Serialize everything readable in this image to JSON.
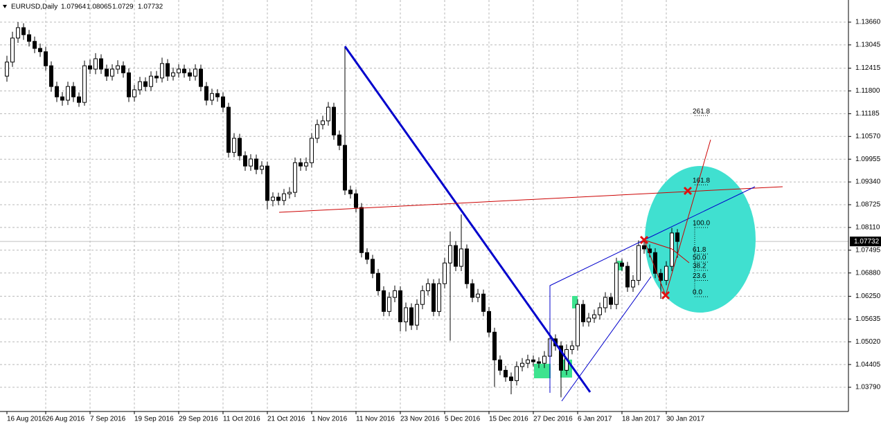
{
  "chart_data": {
    "type": "candlestick",
    "symbol": "EURUSD,Daily",
    "open": [
      1.122,
      1.1258,
      1.1323,
      1.1351,
      1.1332,
      1.1314,
      1.1295,
      1.1286,
      1.1248,
      1.1192,
      1.1164,
      1.1155,
      1.1192,
      1.1164,
      1.1149,
      1.1248,
      1.1239,
      1.1267,
      1.1239,
      1.122,
      1.1239,
      1.1248,
      1.1229,
      1.1164,
      1.1183,
      1.1205,
      1.1192,
      1.122,
      1.1215,
      1.1254,
      1.122,
      1.1229,
      1.1239,
      1.1229,
      1.122,
      1.1239,
      1.1192,
      1.1155,
      1.1173,
      1.1164,
      1.1136,
      1.1014,
      1.1052,
      1.1005,
      1.0977,
      1.0996,
      1.0968,
      1.0977,
      1.0884,
      1.0893,
      1.0884,
      1.0902,
      1.0906,
      1.0986,
      1.0977,
      1.0986,
      1.1052,
      1.1089,
      1.1099,
      1.1136,
      1.1061,
      1.1033,
      1.0912,
      1.0902,
      1.0865,
      1.0743,
      1.0725,
      1.0687,
      1.064,
      1.0584,
      1.0622,
      1.064,
      1.0556,
      1.0594,
      1.0547,
      1.0603,
      1.064,
      1.0659,
      1.0584,
      1.0659,
      1.0715,
      1.0762,
      1.0706,
      1.0753,
      1.0659,
      1.0622,
      1.0631,
      1.0584,
      1.0528,
      1.0453,
      1.0425,
      1.0407,
      1.0397,
      1.0435,
      1.0444,
      1.0453,
      1.0448,
      1.0444,
      1.0463,
      1.051,
      1.0491,
      1.0425,
      1.0481,
      1.0491,
      1.0603,
      1.0556,
      1.0566,
      1.0575,
      1.0594,
      1.0622,
      1.0603,
      1.0715,
      1.0706,
      1.065,
      1.0668,
      1.0762,
      1.0753,
      1.0743,
      1.0687,
      1.0668,
      1.0706,
      1.07964
    ],
    "high": [
      1.1275,
      1.134,
      1.1366,
      1.1363,
      1.1345,
      1.1327,
      1.1308,
      1.1299,
      1.126,
      1.1205,
      1.1177,
      1.1205,
      1.1204,
      1.1176,
      1.1262,
      1.1265,
      1.1282,
      1.1279,
      1.1251,
      1.1252,
      1.1263,
      1.126,
      1.1241,
      1.1196,
      1.1218,
      1.1217,
      1.1233,
      1.1234,
      1.127,
      1.1266,
      1.1243,
      1.1252,
      1.1251,
      1.1241,
      1.1252,
      1.1251,
      1.1204,
      1.1186,
      1.1185,
      1.1176,
      1.1148,
      1.1066,
      1.1064,
      1.1017,
      1.1009,
      1.1008,
      1.099,
      1.0989,
      1.0906,
      1.0905,
      1.0915,
      1.092,
      1.1,
      1.0998,
      1.1,
      1.1066,
      1.1103,
      1.1113,
      1.115,
      1.1148,
      1.1073,
      1.1299,
      1.0924,
      1.0914,
      1.0877,
      1.0755,
      1.0737,
      1.0699,
      1.0652,
      1.0636,
      1.0654,
      1.0652,
      1.0608,
      1.0606,
      1.0617,
      1.0654,
      1.0673,
      1.0671,
      1.0673,
      1.0729,
      1.08,
      1.0774,
      1.0846,
      1.0765,
      1.0671,
      1.0645,
      1.0643,
      1.0596,
      1.054,
      1.0465,
      1.0437,
      1.0419,
      1.0449,
      1.0458,
      1.0467,
      1.0465,
      1.046,
      1.0477,
      1.0524,
      1.0522,
      1.0503,
      1.0495,
      1.0505,
      1.0617,
      1.0615,
      1.058,
      1.0589,
      1.0608,
      1.0636,
      1.0634,
      1.0729,
      1.0727,
      1.0718,
      1.0682,
      1.0776,
      1.0774,
      1.0765,
      1.0755,
      1.0699,
      1.072,
      1.081,
      1.08065
    ],
    "low": [
      1.1205,
      1.1245,
      1.131,
      1.1318,
      1.13,
      1.1282,
      1.1272,
      1.1235,
      1.1178,
      1.115,
      1.114,
      1.1142,
      1.115,
      1.1137,
      1.114,
      1.1226,
      1.1225,
      1.1226,
      1.1207,
      1.1208,
      1.1226,
      1.1216,
      1.115,
      1.1151,
      1.117,
      1.1179,
      1.118,
      1.1202,
      1.1203,
      1.1207,
      1.1208,
      1.1216,
      1.1216,
      1.1207,
      1.1208,
      1.1179,
      1.1141,
      1.1142,
      1.1151,
      1.1123,
      1.1,
      1.1001,
      1.0992,
      1.0964,
      1.0964,
      1.0955,
      1.0955,
      1.086,
      1.0868,
      1.0871,
      1.0871,
      1.0889,
      1.0893,
      1.0964,
      1.0964,
      1.0973,
      1.1039,
      1.1076,
      1.1086,
      1.1048,
      1.102,
      1.0899,
      1.0889,
      1.0852,
      1.073,
      1.0712,
      1.0674,
      1.0627,
      1.0571,
      1.0571,
      1.0609,
      1.053,
      1.053,
      1.0534,
      1.0534,
      1.059,
      1.0627,
      1.0571,
      1.0571,
      1.0646,
      1.0505,
      1.0693,
      1.0693,
      1.0646,
      1.0609,
      1.0609,
      1.0571,
      1.0515,
      1.038,
      1.0412,
      1.0394,
      1.036,
      1.0384,
      1.0422,
      1.0431,
      1.0435,
      1.0431,
      1.0431,
      1.045,
      1.0478,
      1.0352,
      1.0412,
      1.0468,
      1.0478,
      1.0543,
      1.0543,
      1.0553,
      1.0562,
      1.0581,
      1.059,
      1.059,
      1.0693,
      1.0637,
      1.0637,
      1.0655,
      1.074,
      1.073,
      1.0674,
      1.0618,
      1.0655,
      1.0693,
      1.0729
    ],
    "close": [
      1.1258,
      1.1323,
      1.1351,
      1.1332,
      1.1314,
      1.1295,
      1.1286,
      1.1248,
      1.1192,
      1.1164,
      1.1155,
      1.1192,
      1.1164,
      1.1149,
      1.1248,
      1.1239,
      1.1267,
      1.1239,
      1.122,
      1.1239,
      1.1248,
      1.1229,
      1.1164,
      1.1183,
      1.1205,
      1.1192,
      1.122,
      1.1215,
      1.1254,
      1.122,
      1.1229,
      1.1239,
      1.1229,
      1.122,
      1.1239,
      1.1192,
      1.1155,
      1.1173,
      1.1164,
      1.1136,
      1.1014,
      1.1052,
      1.1005,
      1.0977,
      1.0996,
      1.0968,
      1.0977,
      1.0884,
      1.0893,
      1.0884,
      1.0902,
      1.0906,
      1.0986,
      1.0977,
      1.0986,
      1.1052,
      1.1089,
      1.1099,
      1.1136,
      1.1061,
      1.1033,
      1.0912,
      1.0902,
      1.0865,
      1.0743,
      1.0725,
      1.0687,
      1.064,
      1.0584,
      1.0622,
      1.064,
      1.0556,
      1.0594,
      1.0547,
      1.0603,
      1.064,
      1.0659,
      1.0584,
      1.0659,
      1.0715,
      1.0762,
      1.0706,
      1.0753,
      1.0659,
      1.0622,
      1.0631,
      1.0584,
      1.0528,
      1.0453,
      1.0425,
      1.0407,
      1.0397,
      1.0435,
      1.0444,
      1.0453,
      1.0448,
      1.0444,
      1.0463,
      1.051,
      1.0491,
      1.0425,
      1.0481,
      1.0491,
      1.0603,
      1.0556,
      1.0566,
      1.0575,
      1.0594,
      1.0622,
      1.0603,
      1.0715,
      1.0706,
      1.065,
      1.0668,
      1.0762,
      1.0753,
      1.0743,
      1.0687,
      1.0668,
      1.0706,
      1.0796,
      1.07732
    ],
    "up_color": "#ffffff",
    "down_color": "#000000",
    "xlim": [
      -1.25,
      151.875
    ],
    "xticks": [
      {
        "value": 0,
        "label": "16 Aug 2016"
      },
      {
        "value": 7,
        "label": "26 Aug 2016"
      },
      {
        "value": 15,
        "label": "7 Sep 2016"
      },
      {
        "value": 23,
        "label": "19 Sep 2016"
      },
      {
        "value": 31,
        "label": "29 Sep 2016"
      },
      {
        "value": 39,
        "label": "11 Oct 2016"
      },
      {
        "value": 47,
        "label": "21 Oct 2016"
      },
      {
        "value": 55,
        "label": "1 Nov 2016"
      },
      {
        "value": 63,
        "label": "11 Nov 2016"
      },
      {
        "value": 71,
        "label": "23 Nov 2016"
      },
      {
        "value": 79,
        "label": "5 Dec 2016"
      },
      {
        "value": 87,
        "label": "15 Dec 2016"
      },
      {
        "value": 95,
        "label": "27 Dec 2016"
      },
      {
        "value": 103,
        "label": "6 Jan 2017"
      },
      {
        "value": 111,
        "label": "18 Jan 2017"
      },
      {
        "value": 119,
        "label": "30 Jan 2017"
      }
    ],
    "ylim": [
      1.03136,
      1.14258
    ],
    "yticks": [
      {
        "value": 1.1366,
        "label": "1.13660"
      },
      {
        "value": 1.13045,
        "label": "1.13045"
      },
      {
        "value": 1.12415,
        "label": "1.12415"
      },
      {
        "value": 1.118,
        "label": "1.11800"
      },
      {
        "value": 1.11185,
        "label": "1.11185"
      },
      {
        "value": 1.1057,
        "label": "1.10570"
      },
      {
        "value": 1.09955,
        "label": "1.09955"
      },
      {
        "value": 1.0934,
        "label": "1.09340"
      },
      {
        "value": 1.08725,
        "label": "1.08725"
      },
      {
        "value": 1.0811,
        "label": "1.08110"
      },
      {
        "value": 1.07495,
        "label": "1.07495"
      },
      {
        "value": 1.0688,
        "label": "1.06880"
      },
      {
        "value": 1.0625,
        "label": "1.06250"
      },
      {
        "value": 1.05635,
        "label": "1.05635"
      },
      {
        "value": 1.0502,
        "label": "1.05020"
      },
      {
        "value": 1.04405,
        "label": "1.04405"
      },
      {
        "value": 1.0379,
        "label": "1.03790"
      }
    ],
    "grid": true,
    "fibonacci": {
      "price_0": 1.0635,
      "price_100": 1.0822,
      "levels": [
        {
          "value": 261.8,
          "label": "261.8"
        },
        {
          "value": 161.8,
          "label": "161.8"
        },
        {
          "value": 100,
          "label": "100.0"
        },
        {
          "value": 61.8,
          "label": "61.8"
        },
        {
          "value": 50,
          "label": "50.0"
        },
        {
          "value": 38.2,
          "label": "38.2"
        },
        {
          "value": 23.6,
          "label": "23.6"
        },
        {
          "value": 0,
          "label": "0.0"
        }
      ]
    }
  }
}
